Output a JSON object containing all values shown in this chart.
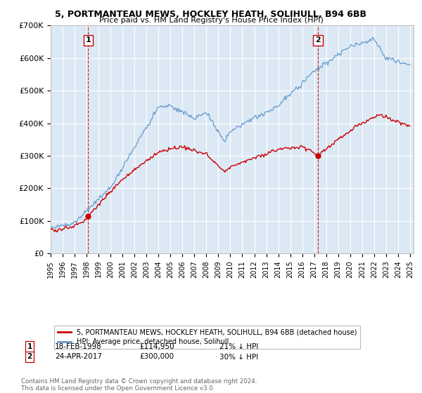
{
  "title": "5, PORTMANTEAU MEWS, HOCKLEY HEATH, SOLIHULL, B94 6BB",
  "subtitle": "Price paid vs. HM Land Registry's House Price Index (HPI)",
  "bg_color": "#dce9f5",
  "ylim": [
    0,
    700000
  ],
  "yticks": [
    0,
    100000,
    200000,
    300000,
    400000,
    500000,
    600000,
    700000
  ],
  "ytick_labels": [
    "£0",
    "£100K",
    "£200K",
    "£300K",
    "£400K",
    "£500K",
    "£600K",
    "£700K"
  ],
  "sale1_date": "18-FEB-1998",
  "sale1_price": 114950,
  "sale1_year": 1998.13,
  "sale1_label": "21% ↓ HPI",
  "sale2_date": "24-APR-2017",
  "sale2_price": 300000,
  "sale2_year": 2017.31,
  "sale2_label": "30% ↓ HPI",
  "line_color_red": "#cc0000",
  "line_color_blue": "#6699cc",
  "legend_label_red": "5, PORTMANTEAU MEWS, HOCKLEY HEATH, SOLIHULL, B94 6BB (detached house)",
  "legend_label_blue": "HPI: Average price, detached house, Solihull",
  "footer": "Contains HM Land Registry data © Crown copyright and database right 2024.\nThis data is licensed under the Open Government Licence v3.0."
}
